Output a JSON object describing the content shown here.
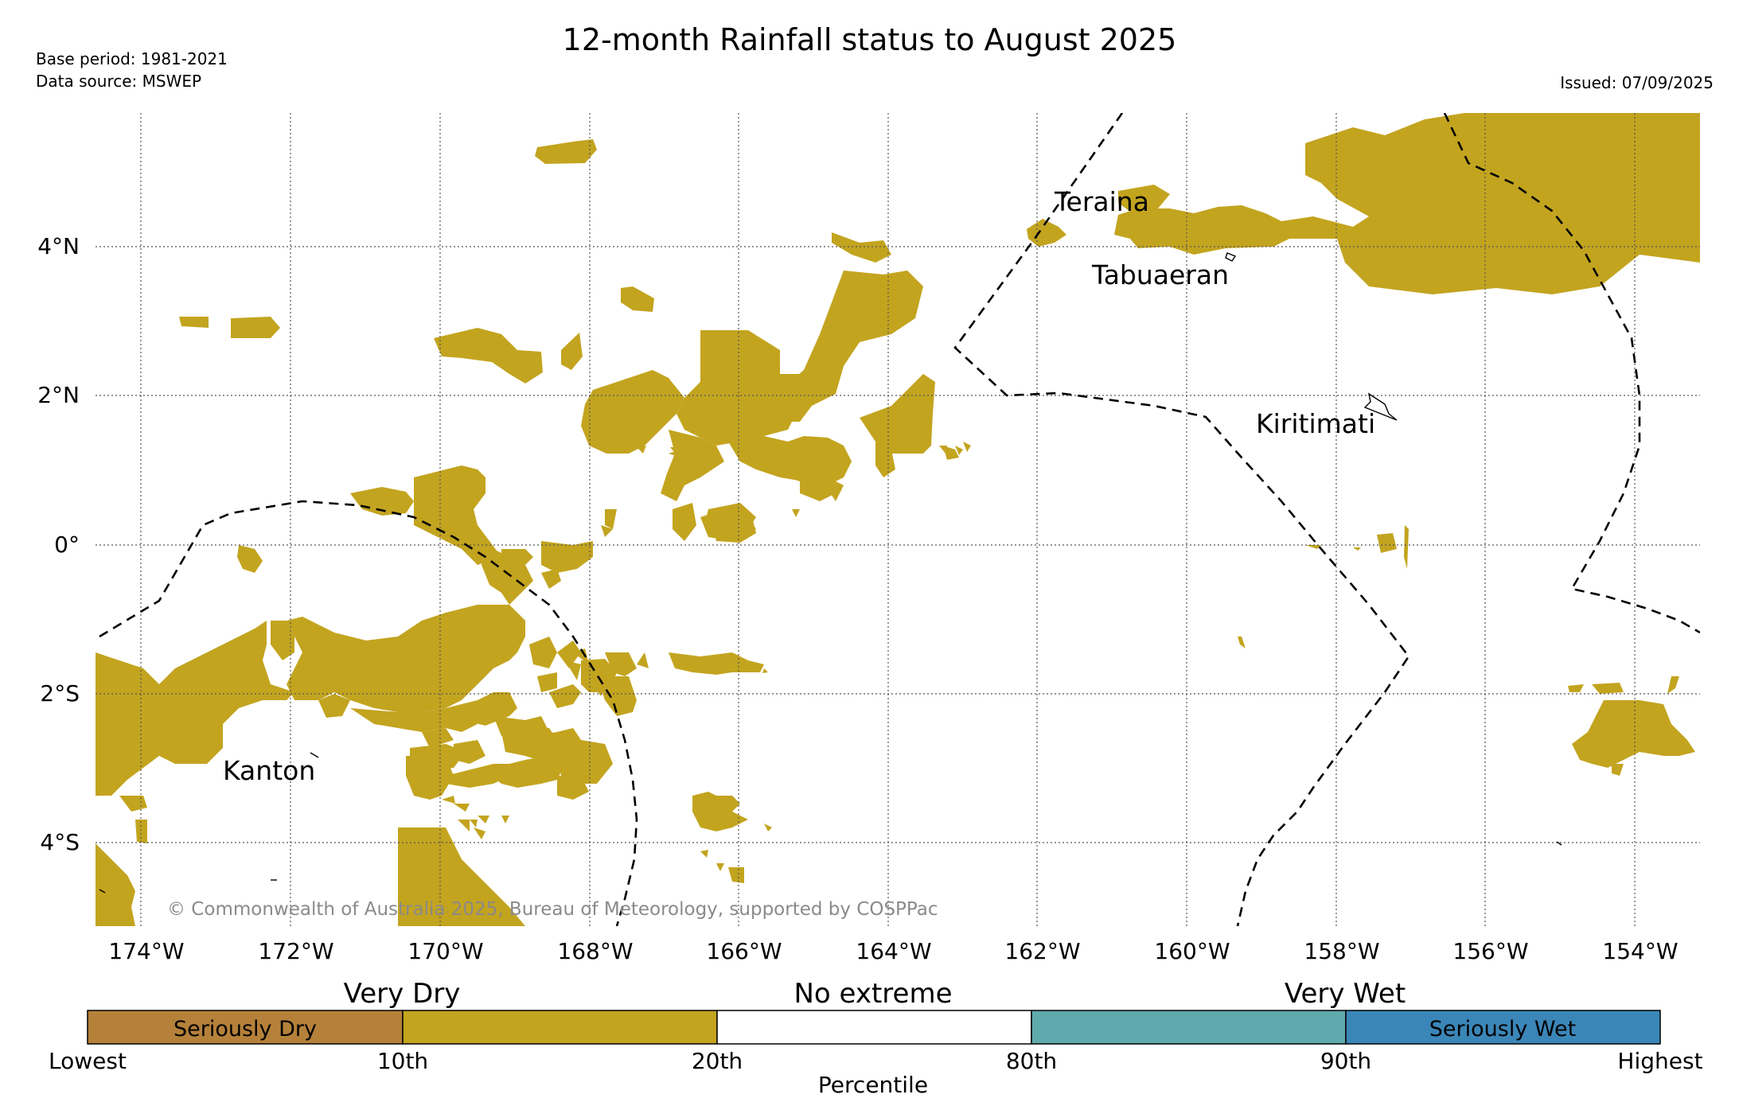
{
  "title": "12-month Rainfall status to August 2025",
  "meta": {
    "base_period": "Base period: 1981-2021",
    "data_source": "Data source: MSWEP",
    "issued": "Issued: 07/09/2025"
  },
  "map": {
    "lon_ticks": [
      "174°W",
      "172°W",
      "170°W",
      "168°W",
      "166°W",
      "164°W",
      "162°W",
      "160°W",
      "158°W",
      "156°W",
      "154°W"
    ],
    "lat_ticks": [
      "4°N",
      "2°N",
      "0°",
      "2°S",
      "4°S"
    ],
    "places": {
      "teraina": "Teraina",
      "tabuaeran": "Tabuaeran",
      "kiritimati": "Kiritimati",
      "kanton": "Kanton"
    },
    "copyright": "© Commonwealth of Australia 2025, Bureau of Meteorology, supported by COSPPac",
    "dry_color": "#c3a41f"
  },
  "legend": {
    "categories": {
      "very_dry": "Very Dry",
      "no_extreme": "No extreme",
      "very_wet": "Very Wet"
    },
    "segments": [
      {
        "label": "Seriously Dry",
        "color": "#b5813a"
      },
      {
        "label": "",
        "color": "#c3a41f"
      },
      {
        "label": "",
        "color": "#ffffff"
      },
      {
        "label": "",
        "color": "#5faaac"
      },
      {
        "label": "Seriously Wet",
        "color": "#3b86b8"
      }
    ],
    "ticks": [
      "Lowest",
      "10th",
      "20th",
      "80th",
      "90th",
      "Highest"
    ],
    "axis_label": "Percentile"
  }
}
